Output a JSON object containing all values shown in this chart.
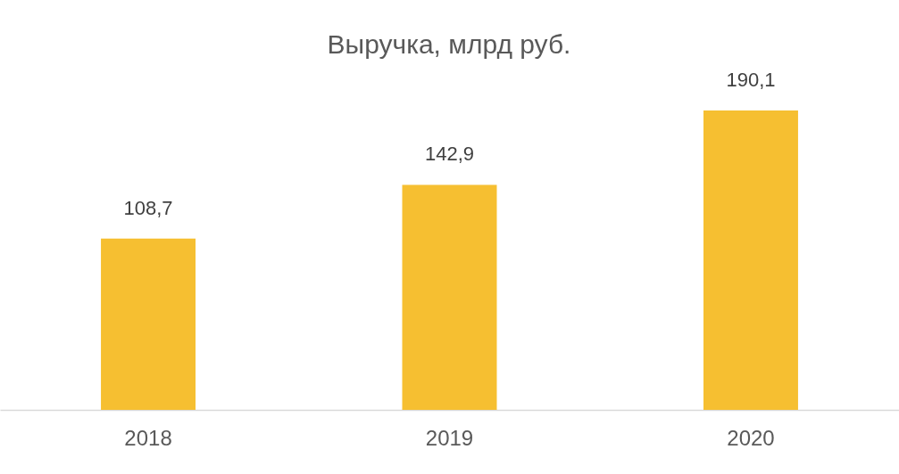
{
  "chart_data": {
    "type": "bar",
    "title": "Выручка, млрд руб.",
    "categories": [
      "2018",
      "2019",
      "2020"
    ],
    "values": [
      108.7,
      142.9,
      190.1
    ],
    "value_labels": [
      "108,7",
      "142,9",
      "190,1"
    ],
    "color": "#f6bf31",
    "grid": false
  }
}
